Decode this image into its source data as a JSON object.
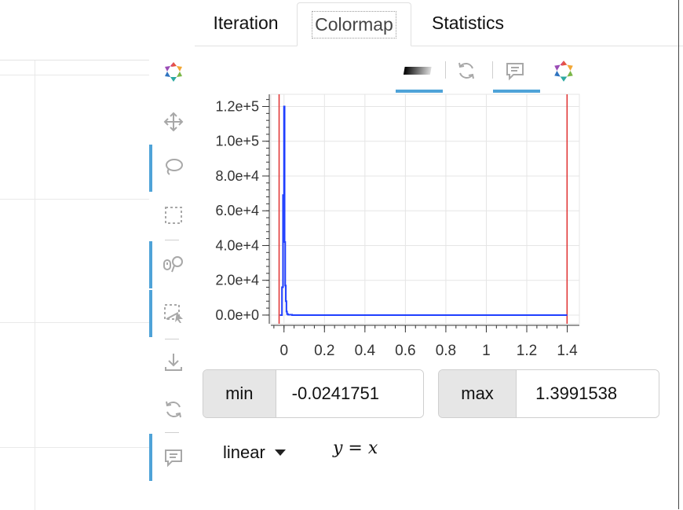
{
  "tabs": [
    {
      "label": "Iteration"
    },
    {
      "label": "Colormap"
    },
    {
      "label": "Statistics"
    }
  ],
  "selected_tab": "Colormap",
  "toolbar": {
    "items": [
      {
        "name": "bokeh-logo",
        "icon": "bokeh-logo-icon",
        "active": false
      },
      {
        "name": "pan-tool",
        "icon": "move-arrows-icon",
        "active": false
      },
      {
        "name": "lasso-tool",
        "icon": "lasso-icon",
        "active": true
      },
      {
        "name": "box-select-tool",
        "icon": "dashed-box-icon",
        "active": false
      },
      {
        "name": "wheel-zoom-tool",
        "icon": "wheel-zoom-icon",
        "active": true
      },
      {
        "name": "box-edit-tool",
        "icon": "box-edit-icon",
        "active": true
      },
      {
        "name": "save-tool",
        "icon": "download-icon",
        "active": false
      },
      {
        "name": "reset-tool",
        "icon": "reset-icon",
        "active": false
      },
      {
        "name": "hover-tool",
        "icon": "speech-bubble-icon",
        "active": true
      }
    ]
  },
  "chart_toolbar": {
    "items": [
      {
        "name": "colorbar-tool",
        "icon": "gradient-bar-icon",
        "active": true
      },
      {
        "name": "reset-tool",
        "icon": "reset-icon",
        "active": false
      },
      {
        "name": "hover-tool",
        "icon": "speech-bubble-icon",
        "active": true
      },
      {
        "name": "bokeh-logo",
        "icon": "bokeh-logo-icon",
        "active": false
      }
    ]
  },
  "colors": {
    "accent": "#4fa3d8",
    "series": "#1f3fff",
    "limit_line": "#e03030"
  },
  "chart_data": {
    "type": "line",
    "x_ticks": [
      "0",
      "0.2",
      "0.4",
      "0.6",
      "0.8",
      "1",
      "1.2",
      "1.4"
    ],
    "y_ticks": [
      "0.0e+0",
      "2.0e+4",
      "4.0e+4",
      "6.0e+4",
      "8.0e+4",
      "1.0e+5",
      "1.2e+5"
    ],
    "xlim": [
      -0.065,
      1.46
    ],
    "ylim": [
      -5000,
      127000
    ],
    "grid": true,
    "series": [
      {
        "x": [
          -0.02,
          -0.01,
          -0.005,
          0.0,
          0.003,
          0.006,
          0.009,
          0.012,
          0.015,
          0.02,
          0.04,
          0.2,
          0.6,
          1.0,
          1.4
        ],
        "y": [
          0,
          16000,
          69000,
          120000,
          42000,
          17000,
          8000,
          2000,
          600,
          200,
          0,
          0,
          0,
          0,
          0
        ]
      }
    ],
    "vlines": [
      -0.0241751,
      1.3991538
    ]
  },
  "min_field": {
    "label": "min",
    "value": "-0.0241751"
  },
  "max_field": {
    "label": "max",
    "value": "1.3991538"
  },
  "scale_select": {
    "value": "linear"
  },
  "formula": "y = x"
}
